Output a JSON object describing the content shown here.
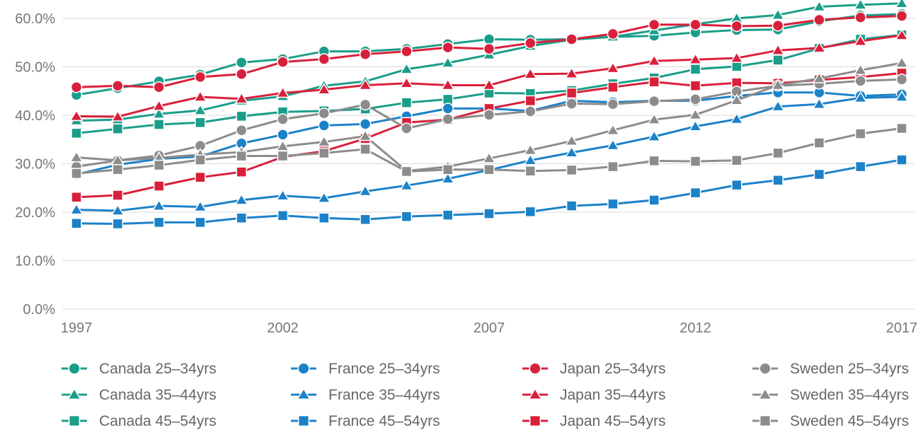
{
  "chart_data": {
    "type": "line",
    "title": "",
    "xlabel": "",
    "ylabel": "",
    "ylim": [
      0,
      0.63
    ],
    "xlim": [
      1997,
      2017
    ],
    "grid": "horizontal",
    "legend_position": "bottom",
    "y_tick_labels": [
      "0.0%",
      "10.0%",
      "20.0%",
      "30.0%",
      "40.0%",
      "50.0%",
      "60.0%"
    ],
    "y_tick_values": [
      0,
      0.1,
      0.2,
      0.3,
      0.4,
      0.5,
      0.6
    ],
    "x_tick_labels": [
      "1997",
      "2002",
      "2007",
      "2012",
      "2017"
    ],
    "x_tick_values": [
      1997,
      2002,
      2007,
      2012,
      2017
    ],
    "x": [
      1997,
      1998,
      1999,
      2000,
      2001,
      2002,
      2003,
      2004,
      2005,
      2006,
      2007,
      2008,
      2009,
      2010,
      2011,
      2012,
      2013,
      2014,
      2015,
      2016,
      2017
    ],
    "series": [
      {
        "name": "Canada 25–34yrs",
        "color": "#1a9e8a",
        "marker": "circle",
        "values": [
          0.442,
          0.456,
          0.47,
          0.484,
          0.509,
          0.516,
          0.532,
          0.532,
          0.537,
          0.547,
          0.557,
          0.556,
          0.557,
          0.562,
          0.564,
          0.571,
          0.576,
          0.577,
          0.594,
          0.606,
          0.609
        ]
      },
      {
        "name": "Canada 35–44yrs",
        "color": "#1a9e8a",
        "marker": "triangle",
        "values": [
          0.389,
          0.391,
          0.403,
          0.41,
          0.43,
          0.439,
          0.461,
          0.47,
          0.495,
          0.508,
          0.525,
          0.543,
          0.556,
          0.562,
          0.575,
          0.588,
          0.6,
          0.607,
          0.624,
          0.628,
          0.631
        ]
      },
      {
        "name": "Canada 45–54yrs",
        "color": "#1a9e8a",
        "marker": "square",
        "values": [
          0.363,
          0.372,
          0.381,
          0.385,
          0.398,
          0.407,
          0.409,
          0.413,
          0.426,
          0.433,
          0.446,
          0.445,
          0.451,
          0.465,
          0.477,
          0.495,
          0.501,
          0.514,
          0.538,
          0.557,
          0.566
        ]
      },
      {
        "name": "France 25–34yrs",
        "color": "#1c82c8",
        "marker": "circle",
        "values": [
          0.278,
          0.298,
          0.31,
          0.315,
          0.342,
          0.36,
          0.379,
          0.382,
          0.398,
          0.414,
          0.414,
          0.409,
          0.43,
          0.427,
          0.43,
          0.43,
          0.44,
          0.447,
          0.447,
          0.44,
          0.443
        ]
      },
      {
        "name": "France 35–44yrs",
        "color": "#1c82c8",
        "marker": "triangle",
        "values": [
          0.205,
          0.203,
          0.213,
          0.211,
          0.225,
          0.234,
          0.229,
          0.243,
          0.255,
          0.269,
          0.287,
          0.307,
          0.323,
          0.338,
          0.356,
          0.377,
          0.392,
          0.418,
          0.423,
          0.436,
          0.438
        ]
      },
      {
        "name": "France 45–54yrs",
        "color": "#1c82c8",
        "marker": "square",
        "values": [
          0.177,
          0.176,
          0.179,
          0.179,
          0.188,
          0.193,
          0.188,
          0.185,
          0.191,
          0.194,
          0.197,
          0.201,
          0.213,
          0.217,
          0.225,
          0.24,
          0.256,
          0.266,
          0.278,
          0.294,
          0.308
        ]
      },
      {
        "name": "Japan 25–34yrs",
        "color": "#d9203b",
        "marker": "circle",
        "values": [
          0.458,
          0.461,
          0.458,
          0.479,
          0.485,
          0.51,
          0.516,
          0.526,
          0.532,
          0.54,
          0.537,
          0.549,
          0.557,
          0.568,
          0.587,
          0.587,
          0.584,
          0.585,
          0.597,
          0.602,
          0.605
        ]
      },
      {
        "name": "Japan 35–44yrs",
        "color": "#d9203b",
        "marker": "triangle",
        "values": [
          0.398,
          0.397,
          0.419,
          0.438,
          0.434,
          0.446,
          0.453,
          0.462,
          0.466,
          0.462,
          0.462,
          0.485,
          0.486,
          0.497,
          0.512,
          0.515,
          0.518,
          0.534,
          0.539,
          0.553,
          0.565
        ]
      },
      {
        "name": "Japan 45–54yrs",
        "color": "#d9203b",
        "marker": "square",
        "values": [
          0.231,
          0.235,
          0.254,
          0.272,
          0.283,
          0.314,
          0.326,
          0.352,
          0.385,
          0.391,
          0.414,
          0.43,
          0.446,
          0.458,
          0.469,
          0.461,
          0.467,
          0.466,
          0.473,
          0.479,
          0.487
        ]
      },
      {
        "name": "Sweden 25–34yrs",
        "color": "#8c8c8c",
        "marker": "circle",
        "values": [
          0.294,
          0.307,
          0.317,
          0.337,
          0.369,
          0.392,
          0.404,
          0.422,
          0.373,
          0.392,
          0.401,
          0.408,
          0.424,
          0.423,
          0.429,
          0.433,
          0.449,
          0.461,
          0.465,
          0.471,
          0.474
        ]
      },
      {
        "name": "Sweden 35–44yrs",
        "color": "#8c8c8c",
        "marker": "triangle",
        "values": [
          0.313,
          0.307,
          0.312,
          0.319,
          0.324,
          0.336,
          0.345,
          0.357,
          0.285,
          0.294,
          0.311,
          0.328,
          0.347,
          0.369,
          0.391,
          0.401,
          0.431,
          0.462,
          0.476,
          0.493,
          0.508
        ]
      },
      {
        "name": "Sweden 45–54yrs",
        "color": "#8c8c8c",
        "marker": "square",
        "values": [
          0.28,
          0.288,
          0.297,
          0.308,
          0.316,
          0.316,
          0.322,
          0.33,
          0.284,
          0.288,
          0.288,
          0.285,
          0.287,
          0.294,
          0.306,
          0.305,
          0.307,
          0.322,
          0.343,
          0.362,
          0.373
        ]
      }
    ]
  }
}
